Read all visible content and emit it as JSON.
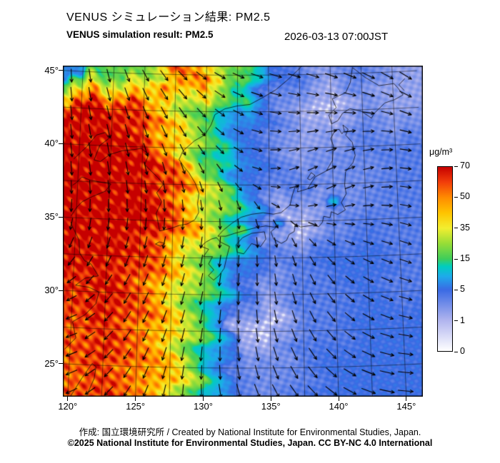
{
  "header": {
    "title_ja": "VENUS シミュレーション結果: PM2.5",
    "title_en": "VENUS simulation result: PM2.5",
    "timestamp": "2026-03-13 07:00JST"
  },
  "footer": {
    "attribution": "作成: 国立環境研究所 / Created by National Institute for Environmental Studies, Japan.",
    "copyright": "©2025 National Institute for Environmental Studies, Japan. CC BY-NC 4.0 International"
  },
  "chart_data": {
    "type": "heatmap",
    "title": "VENUS simulation result: PM2.5",
    "variable": "PM2.5 surface concentration",
    "unit": "μg/m³",
    "valid_time": "2026-03-13 07:00JST",
    "region": "East Asia / Japan",
    "x_axis": {
      "name": "longitude",
      "range_deg_east": [
        119.6,
        146.2
      ],
      "ticks": [
        {
          "value": 120,
          "label": "120°"
        },
        {
          "value": 125,
          "label": "125°"
        },
        {
          "value": 130,
          "label": "130°"
        },
        {
          "value": 135,
          "label": "135°"
        },
        {
          "value": 140,
          "label": "140°"
        },
        {
          "value": 145,
          "label": "145°"
        }
      ]
    },
    "y_axis": {
      "name": "latitude",
      "range_deg_north": [
        23.0,
        45.6
      ],
      "ticks": [
        {
          "value": 45,
          "label": "45°"
        },
        {
          "value": 40,
          "label": "40°"
        },
        {
          "value": 35,
          "label": "35°"
        },
        {
          "value": 30,
          "label": "30°"
        },
        {
          "value": 25,
          "label": "25°"
        }
      ]
    },
    "colorbar": {
      "label": "μg/m³",
      "tick_values": [
        0,
        1,
        5,
        15,
        35,
        50,
        70
      ],
      "gradient_stops": [
        {
          "t": 0.0,
          "color": "#ffffff"
        },
        {
          "t": 0.167,
          "color": "#b0b4ee"
        },
        {
          "t": 0.333,
          "color": "#3a6ae4"
        },
        {
          "t": 0.405,
          "color": "#1eaaeb"
        },
        {
          "t": 0.46,
          "color": "#00cdbe"
        },
        {
          "t": 0.5,
          "color": "#3ecd5a"
        },
        {
          "t": 0.583,
          "color": "#96dd37"
        },
        {
          "t": 0.667,
          "color": "#f2ee30"
        },
        {
          "t": 0.75,
          "color": "#ffc400"
        },
        {
          "t": 0.833,
          "color": "#ff8c00"
        },
        {
          "t": 0.917,
          "color": "#f23e0a"
        },
        {
          "t": 1.0,
          "color": "#c60000"
        }
      ]
    },
    "overlays": [
      "coastlines",
      "2.5-degree graticule",
      "wind vector arrows"
    ],
    "wind": {
      "style": "black arrows on regular grid",
      "pattern": "northerly/northwesterly flow over the continent veering to westerly-southwesterly over the Pacific"
    },
    "field_summary": {
      "description": "Approximate PM2.5 values (μg/m³) read from the map on a 2.5° grid; rows north→south (45°N→25°N), columns west→east (120°E→145°E). Dense continental outflow plume (red, 50-70+) west of ~130°E, sharp green/yellow transition band, clean Pacific air (blue, 1-5) to the east with near-zero (white) patches.",
      "lats": [
        45,
        42.5,
        40,
        37.5,
        35,
        32.5,
        30,
        27.5,
        25
      ],
      "lons": [
        120,
        122.5,
        125,
        127.5,
        130,
        132.5,
        135,
        137.5,
        140,
        142.5,
        145
      ],
      "values": [
        [
          7,
          18,
          20,
          58,
          48,
          22,
          5,
          4,
          2,
          4,
          2
        ],
        [
          68,
          70,
          55,
          30,
          18,
          8,
          4,
          2,
          0.5,
          3,
          2
        ],
        [
          70,
          72,
          68,
          45,
          15,
          6,
          4,
          2,
          3,
          4,
          4
        ],
        [
          72,
          72,
          70,
          60,
          30,
          8,
          4,
          4,
          3,
          3,
          4
        ],
        [
          72,
          70,
          72,
          58,
          35,
          14,
          1.5,
          0.4,
          3,
          4,
          4
        ],
        [
          70,
          68,
          62,
          45,
          22,
          7,
          4,
          4,
          5,
          5,
          4
        ],
        [
          62,
          68,
          58,
          38,
          16,
          5,
          2,
          4,
          4,
          5,
          4
        ],
        [
          58,
          64,
          55,
          40,
          14,
          1.5,
          0.5,
          4,
          4,
          5,
          5
        ],
        [
          55,
          62,
          52,
          42,
          12,
          4,
          3,
          4,
          5,
          5,
          5
        ]
      ]
    }
  },
  "style": {
    "background": "#ffffff",
    "frame_color": "#000000",
    "arrow_color": "#000000",
    "text_color": "#000000"
  }
}
